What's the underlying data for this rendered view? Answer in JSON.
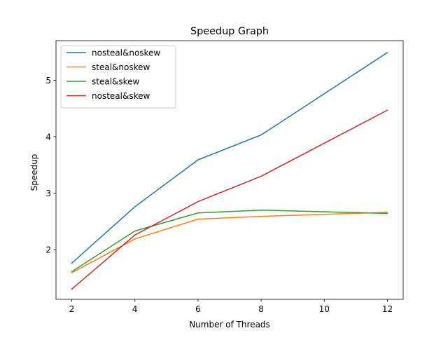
{
  "chart_data": {
    "type": "line",
    "title": "Speedup Graph",
    "xlabel": "Number of Threads",
    "ylabel": "Speedup",
    "x": [
      2,
      4,
      6,
      8,
      12
    ],
    "xlim": [
      1.5,
      12.5
    ],
    "ylim": [
      1.12,
      5.7
    ],
    "xticks": [
      2,
      4,
      6,
      8,
      10,
      12
    ],
    "yticks": [
      2,
      3,
      4,
      5
    ],
    "grid": false,
    "legend_position": "top-left",
    "series": [
      {
        "name": "nosteal&noskew",
        "color": "#1f77b4",
        "values": [
          1.76,
          2.76,
          3.59,
          4.03,
          5.49
        ]
      },
      {
        "name": "steal&noskew",
        "color": "#ff7f0e",
        "values": [
          1.59,
          2.19,
          2.54,
          2.59,
          2.66
        ]
      },
      {
        "name": "steal&skew",
        "color": "#2ca02c",
        "values": [
          1.61,
          2.33,
          2.65,
          2.7,
          2.64
        ]
      },
      {
        "name": "nosteal&skew",
        "color": "#d62728",
        "values": [
          1.3,
          2.26,
          2.85,
          3.3,
          4.47
        ]
      }
    ]
  }
}
